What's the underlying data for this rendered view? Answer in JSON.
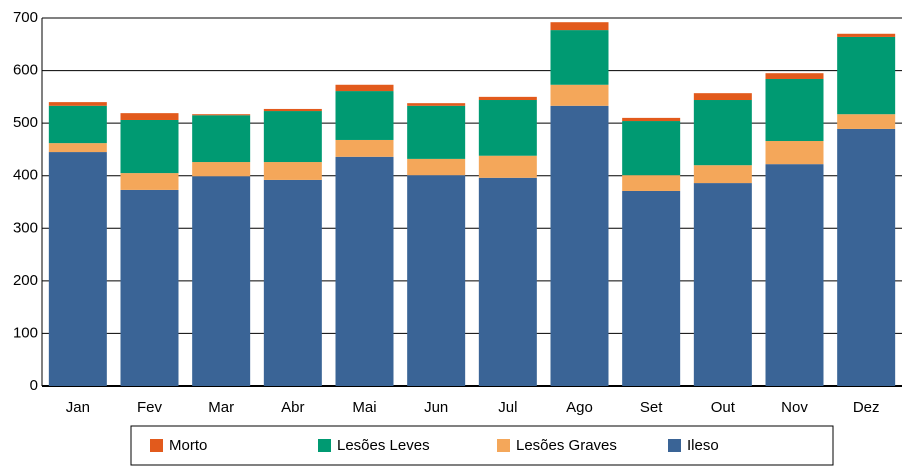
{
  "chart_data": {
    "type": "stacked_bar",
    "categories": [
      "Jan",
      "Fev",
      "Mar",
      "Abr",
      "Mai",
      "Jun",
      "Jul",
      "Ago",
      "Set",
      "Out",
      "Nov",
      "Dez"
    ],
    "series": [
      {
        "name": "Morto",
        "color": "#e25a1c",
        "values": [
          7,
          13,
          2,
          4,
          12,
          5,
          6,
          15,
          6,
          13,
          11,
          6
        ]
      },
      {
        "name": "Lesões Leves",
        "color": "#009a72",
        "values": [
          71,
          101,
          89,
          97,
          93,
          101,
          106,
          104,
          103,
          124,
          118,
          147
        ]
      },
      {
        "name": "Lesões Graves",
        "color": "#f4a75a",
        "values": [
          17,
          32,
          27,
          34,
          32,
          31,
          42,
          40,
          30,
          34,
          44,
          28
        ]
      },
      {
        "name": "Ileso",
        "color": "#3a6496",
        "values": [
          445,
          373,
          399,
          392,
          436,
          401,
          396,
          533,
          371,
          386,
          422,
          489
        ]
      }
    ],
    "ylim": [
      0,
      700
    ],
    "yticks": [
      0,
      100,
      200,
      300,
      400,
      500,
      600,
      700
    ],
    "grid": true
  }
}
